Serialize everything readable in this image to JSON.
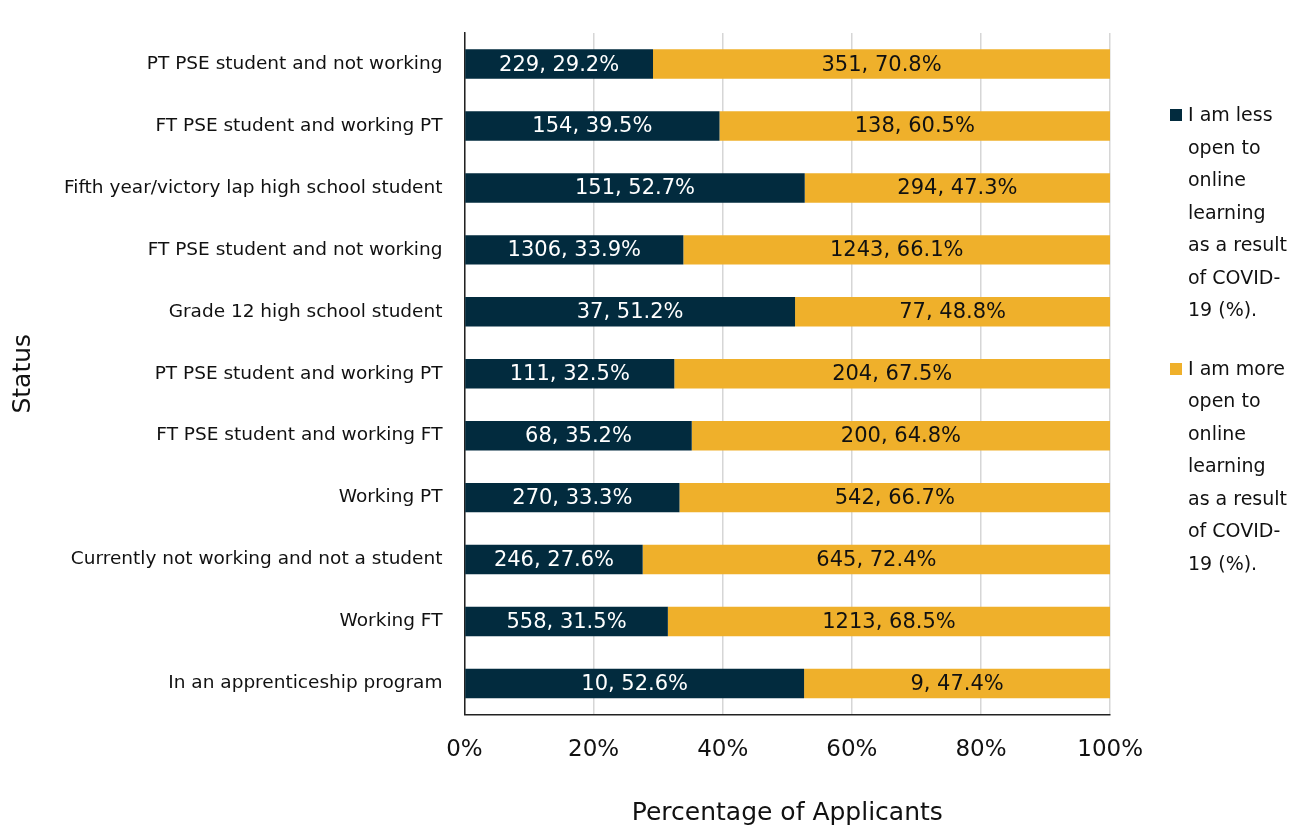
{
  "chart_data": {
    "type": "bar",
    "orientation": "horizontal",
    "stacked": true,
    "xlabel": "Percentage of Applicants",
    "ylabel": "Status",
    "categories": [
      "PT PSE student and not working",
      "FT PSE student and working PT",
      "Fifth year/victory lap high school student",
      "FT PSE student and not working",
      "Grade 12 high school student",
      "PT PSE student and working PT",
      "FT PSE student and working FT",
      "Working PT",
      "Currently not working and not a student",
      "Working FT",
      "In an apprenticeship program"
    ],
    "series": [
      {
        "name": "I am less open to online learning as a result of COVID-19 (%).",
        "color": "#022b3e",
        "values": [
          29.2,
          39.5,
          52.7,
          33.9,
          51.2,
          32.5,
          35.2,
          33.3,
          27.6,
          31.5,
          52.6
        ],
        "value_labels": [
          "229, 29.2%",
          "154, 39.5%",
          "151, 52.7%",
          "1306, 33.9%",
          "37, 51.2%",
          "111, 32.5%",
          "68, 35.2%",
          "270, 33.3%",
          "246, 27.6%",
          "558, 31.5%",
          "10, 52.6%"
        ]
      },
      {
        "name": "I am more open to online learning as a result of COVID-19 (%).",
        "color": "#efb02b",
        "values": [
          70.8,
          60.5,
          47.3,
          66.1,
          48.8,
          67.5,
          64.8,
          66.7,
          72.4,
          68.5,
          47.4
        ],
        "value_labels": [
          "351, 70.8%",
          "138, 60.5%",
          "294, 47.3%",
          "1243, 66.1%",
          "77, 48.8%",
          "204, 67.5%",
          "200, 64.8%",
          "542, 66.7%",
          "645, 72.4%",
          "1213, 68.5%",
          "9, 47.4%"
        ]
      }
    ],
    "xlim": [
      0,
      100
    ],
    "xticks": [
      {
        "value": 0,
        "label": "0%"
      },
      {
        "value": 20,
        "label": "20%"
      },
      {
        "value": 40,
        "label": "40%"
      },
      {
        "value": 60,
        "label": "60%"
      },
      {
        "value": 80,
        "label": "80%"
      },
      {
        "value": 100,
        "label": "100%"
      }
    ],
    "grid": "x",
    "legend": "right"
  }
}
